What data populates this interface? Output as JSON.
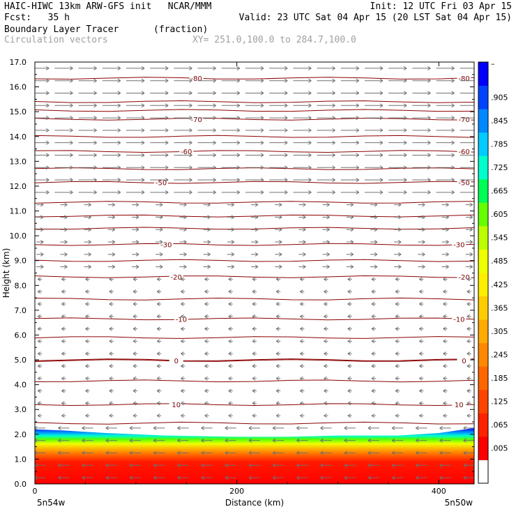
{
  "header": {
    "line1_left": "HAIC-HIWC 13km ARW-GFS init   NCAR/MMM",
    "line1_right": "Init: 12 UTC Fri 03 Apr 15",
    "line2_left": "Fcst:   35 h",
    "line2_right": "Valid: 23 UTC Sat 04 Apr 15 (20 LST Sat 04 Apr 15)",
    "field_name": "Boundary Layer Tracer",
    "field_units": "(fraction)",
    "vector_label": "Circulation vectors",
    "xy_range": "XY= 251.0,100.0 to 284.7,100.0"
  },
  "colors": {
    "contour": "#8b0000",
    "vector": "#707070",
    "colorbar": [
      "#ffffff",
      "#ff0000",
      "#ff2200",
      "#ff4400",
      "#ff6600",
      "#ff8800",
      "#ffaa00",
      "#ffcc00",
      "#ffee00",
      "#eeff00",
      "#bbff00",
      "#66ff00",
      "#00ff55",
      "#00ffcc",
      "#00ccff",
      "#0088ff",
      "#0044ff",
      "#0000ff"
    ]
  },
  "chart_data": {
    "type": "heatmap",
    "title": "Boundary Layer Tracer",
    "units": "(fraction)",
    "xlabel": "Distance (km)",
    "ylabel": "Height (km)",
    "xlim": [
      0,
      435
    ],
    "ylim": [
      0,
      17
    ],
    "x_ticks": [
      0,
      200,
      400
    ],
    "x_tick_labels": [
      "0",
      "200",
      "400"
    ],
    "y_ticks": [
      0,
      1,
      2,
      3,
      4,
      5,
      6,
      7,
      8,
      9,
      10,
      11,
      12,
      13,
      14,
      15,
      16,
      17
    ],
    "y_tick_labels": [
      "0.0",
      "1.0",
      "2.0",
      "3.0",
      "4.0",
      "5.0",
      "6.0",
      "7.0",
      "8.0",
      "9.0",
      "10.0",
      "11.0",
      "12.0",
      "13.0",
      "14.0",
      "15.0",
      "16.0",
      "17.0"
    ],
    "left_endpoint": "5n54w",
    "right_endpoint": "5n50w",
    "colorbar_labels": [
      "–",
      ".905",
      ".845",
      ".785",
      ".725",
      ".665",
      ".605",
      ".545",
      ".485",
      ".425",
      ".365",
      ".305",
      ".245",
      ".185",
      ".125",
      ".065",
      ".005"
    ],
    "boundary_layer_top_km": [
      {
        "x": 0,
        "z": 2.2
      },
      {
        "x": 30,
        "z": 2.15
      },
      {
        "x": 70,
        "z": 2.05
      },
      {
        "x": 130,
        "z": 1.95
      },
      {
        "x": 200,
        "z": 1.9
      },
      {
        "x": 250,
        "z": 1.9
      },
      {
        "x": 300,
        "z": 1.95
      },
      {
        "x": 360,
        "z": 1.95
      },
      {
        "x": 400,
        "z": 2.05
      },
      {
        "x": 435,
        "z": 2.25
      }
    ],
    "temperature_contours": [
      {
        "label": "-80",
        "z": 16.35,
        "left_x": 160,
        "right_x": 425
      },
      {
        "label": "-70",
        "z": 14.7,
        "left_x": 160,
        "right_x": 425
      },
      {
        "label": "-60",
        "z": 13.4,
        "left_x": 150,
        "right_x": 425
      },
      {
        "label": "-50",
        "z": 12.15,
        "left_x": 125,
        "right_x": 425
      },
      {
        "label": "-30",
        "z": 9.65,
        "left_x": 130,
        "right_x": 420
      },
      {
        "label": "-20",
        "z": 8.35,
        "left_x": 140,
        "right_x": 425
      },
      {
        "label": "-10",
        "z": 6.65,
        "left_x": 145,
        "right_x": 420
      },
      {
        "label": "0",
        "z": 4.97,
        "left_x": 140,
        "right_x": 425
      },
      {
        "label": "10",
        "z": 3.2,
        "left_x": 140,
        "right_x": 420
      }
    ],
    "unlabeled_isotherms_km": [
      15.4,
      15.05,
      14.0,
      12.7,
      11.35,
      10.8,
      10.3,
      9.0,
      7.45,
      5.9,
      5.0,
      4.15,
      2.45
    ]
  }
}
